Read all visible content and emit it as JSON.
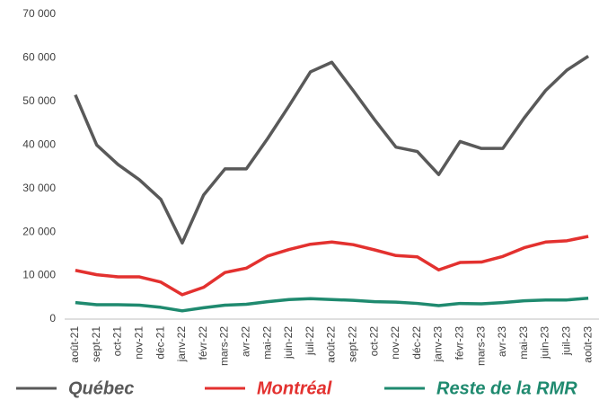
{
  "chart_data": {
    "type": "line",
    "categories": [
      "août-21",
      "sept-21",
      "oct-21",
      "nov-21",
      "déc-21",
      "janv-22",
      "févr-22",
      "mars-22",
      "avr-22",
      "mai-22",
      "juin-22",
      "juil-22",
      "août-22",
      "sept-22",
      "oct-22",
      "nov-22",
      "déc-22",
      "janv-23",
      "févr-23",
      "mars-23",
      "avr-23",
      "mai-23",
      "juin-23",
      "juil-23",
      "août-23"
    ],
    "series": [
      {
        "name": "Québec",
        "color": "#595959",
        "values": [
          51500,
          40000,
          35500,
          32000,
          27500,
          17500,
          28500,
          34500,
          34500,
          41500,
          49000,
          56800,
          59000,
          52500,
          45800,
          39500,
          38500,
          33200,
          40800,
          39200,
          39200,
          46200,
          52500,
          57200,
          60400
        ]
      },
      {
        "name": "Montréal",
        "color": "#e3312f",
        "values": [
          11200,
          10200,
          9700,
          9700,
          8500,
          5600,
          7300,
          10700,
          11700,
          14500,
          16000,
          17200,
          17700,
          17100,
          15900,
          14600,
          14300,
          11300,
          13000,
          13100,
          14400,
          16400,
          17700,
          18000,
          19000
        ]
      },
      {
        "name": "Reste de la RMR",
        "color": "#1f8a6f",
        "values": [
          3800,
          3300,
          3300,
          3200,
          2700,
          1900,
          2600,
          3200,
          3400,
          4000,
          4500,
          4700,
          4500,
          4300,
          4000,
          3900,
          3600,
          3100,
          3600,
          3500,
          3800,
          4200,
          4400,
          4400,
          4800
        ]
      }
    ],
    "ylim": [
      0,
      70000
    ],
    "yticks": [
      0,
      {
        "value": 10000,
        "label": "10 000"
      },
      {
        "value": 20000,
        "label": "20 000"
      },
      {
        "value": 30000,
        "label": "30 000"
      },
      {
        "value": 40000,
        "label": "40 000"
      },
      {
        "value": 50000,
        "label": "50 000"
      },
      {
        "value": 60000,
        "label": "60 000"
      },
      {
        "value": 70000,
        "label": "70 000"
      }
    ],
    "grid": false,
    "legend": "bottom"
  }
}
